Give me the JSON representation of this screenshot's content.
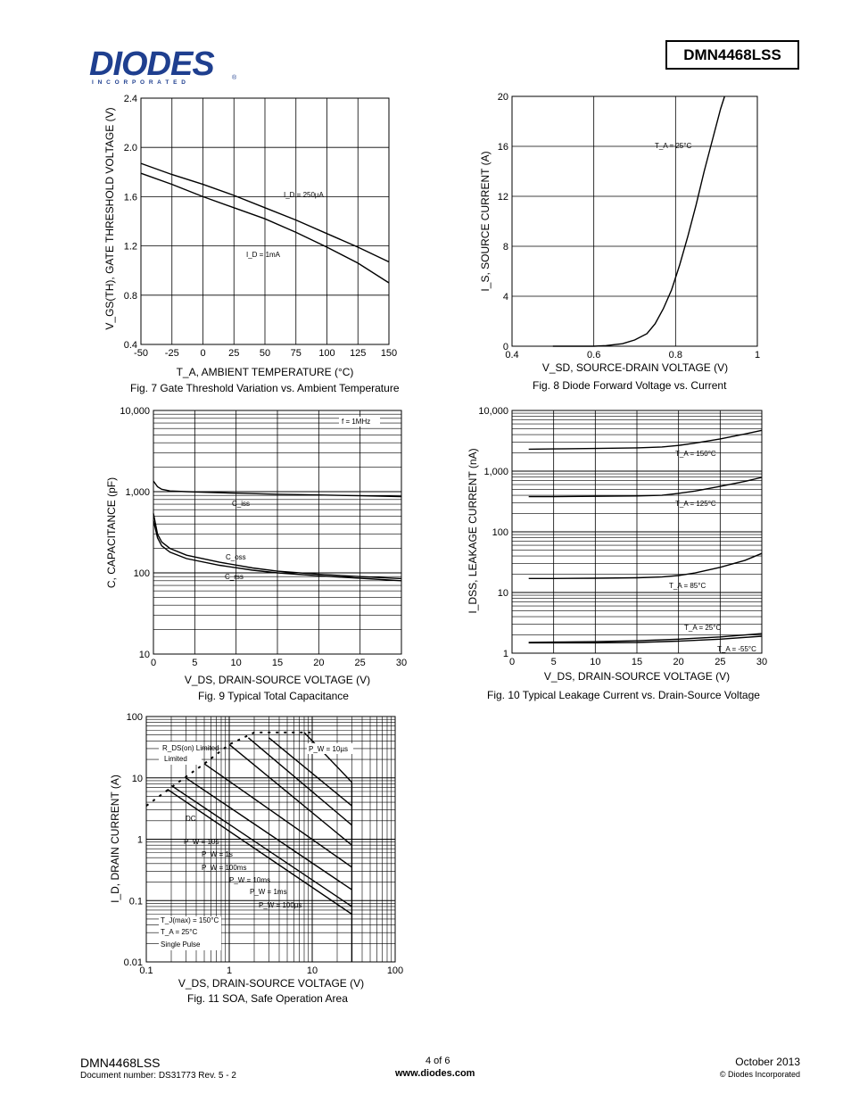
{
  "header": {
    "logo_text": "DIODES",
    "logo_sub": "I N C O R P O R A T E D",
    "logo_reg": "®",
    "part_number": "DMN4468LSS"
  },
  "footer": {
    "part": "DMN4468LSS",
    "doc": "Document number: DS31773 Rev. 5 - 2",
    "page": "4 of 6",
    "url": "www.diodes.com",
    "date": "October 2013",
    "copyright": "© Diodes Incorporated"
  },
  "chart_data": [
    {
      "id": "fig7",
      "type": "line",
      "caption": "Fig. 7 Gate Threshold Variation vs. Ambient Temperature",
      "xlabel": "T_A, AMBIENT TEMPERATURE (°C)",
      "ylabel": "V_GS(TH), GATE THRESHOLD VOLTAGE (V)",
      "xlim": [
        -50,
        150
      ],
      "ylim": [
        0.4,
        2.4
      ],
      "xticks": [
        -50,
        -25,
        0,
        25,
        50,
        75,
        100,
        125,
        150
      ],
      "yticks": [
        0.4,
        0.8,
        1.2,
        1.6,
        2.0,
        2.4
      ],
      "ytick_labels": [
        "0.4",
        "0.8",
        "1.2",
        "1.6",
        "2.0",
        "2.4"
      ],
      "series": [
        {
          "name": "I_D = 250µA",
          "x": [
            -50,
            -25,
            0,
            25,
            50,
            75,
            100,
            125,
            150
          ],
          "y": [
            1.87,
            1.78,
            1.7,
            1.61,
            1.51,
            1.41,
            1.3,
            1.19,
            1.07
          ]
        },
        {
          "name": "I_D = 1mA",
          "x": [
            -50,
            -25,
            0,
            25,
            50,
            75,
            100,
            125,
            150
          ],
          "y": [
            1.79,
            1.7,
            1.6,
            1.51,
            1.42,
            1.31,
            1.19,
            1.06,
            0.9
          ]
        }
      ],
      "annotations": [
        "I_D = 250µA",
        "I_D = 1mA"
      ]
    },
    {
      "id": "fig8",
      "type": "line",
      "caption": "Fig. 8 Diode Forward Voltage vs. Current",
      "xlabel": "V_SD, SOURCE-DRAIN VOLTAGE (V)",
      "ylabel": "I_S, SOURCE CURRENT (A)",
      "xlim": [
        0.4,
        1.0
      ],
      "ylim": [
        0,
        20
      ],
      "xticks": [
        0.4,
        0.6,
        0.8,
        1.0
      ],
      "xtick_labels": [
        "0.4",
        "0.6",
        "0.8",
        "1"
      ],
      "yticks": [
        0,
        4,
        8,
        12,
        16,
        20
      ],
      "series": [
        {
          "name": "T_A = 25°C",
          "x": [
            0.5,
            0.6,
            0.63,
            0.67,
            0.7,
            0.73,
            0.75,
            0.77,
            0.79,
            0.81,
            0.83,
            0.85,
            0.87,
            0.89,
            0.91,
            0.92
          ],
          "y": [
            0.0,
            0.0,
            0.05,
            0.2,
            0.5,
            1.0,
            1.8,
            3.0,
            4.5,
            6.5,
            8.8,
            11.3,
            14.0,
            16.5,
            19.0,
            20.0
          ]
        }
      ],
      "annotations": [
        "T_A = 25°C"
      ]
    },
    {
      "id": "fig9",
      "type": "line",
      "yscale": "log",
      "caption": "Fig. 9 Typical Total Capacitance",
      "xlabel": "V_DS, DRAIN-SOURCE VOLTAGE (V)",
      "ylabel": "C, CAPACITANCE (pF)",
      "xlim": [
        0,
        30
      ],
      "ylim": [
        10,
        10000
      ],
      "xticks": [
        0,
        5,
        10,
        15,
        20,
        25,
        30
      ],
      "yticks": [
        10,
        100,
        1000,
        10000
      ],
      "ytick_labels": [
        "10",
        "100",
        "1,000",
        "10,000"
      ],
      "legend": "f = 1MHz",
      "series": [
        {
          "name": "C_iss",
          "x": [
            0,
            0.5,
            1,
            2,
            4,
            8,
            15,
            20,
            25,
            30
          ],
          "y": [
            1350,
            1150,
            1070,
            1020,
            1000,
            970,
            930,
            910,
            890,
            870
          ]
        },
        {
          "name": "C_oss",
          "x": [
            0,
            0.5,
            1,
            2,
            4,
            8,
            12,
            15,
            20,
            25,
            30
          ],
          "y": [
            540,
            300,
            240,
            200,
            165,
            135,
            115,
            105,
            96,
            90,
            85
          ]
        },
        {
          "name": "C_rss",
          "x": [
            0,
            0.5,
            1,
            2,
            4,
            8,
            12,
            15,
            20,
            25,
            30
          ],
          "y": [
            440,
            270,
            215,
            180,
            150,
            124,
            108,
            100,
            92,
            86,
            80
          ]
        }
      ],
      "annotations": [
        "C_iss",
        "C_oss",
        "C_rss"
      ]
    },
    {
      "id": "fig10",
      "type": "line",
      "yscale": "log",
      "caption": "Fig. 10 Typical Leakage Current vs. Drain-Source Voltage",
      "xlabel": "V_DS, DRAIN-SOURCE VOLTAGE (V)",
      "ylabel": "I_DSS, LEAKAGE CURRENT (nA)",
      "xlim": [
        0,
        30
      ],
      "ylim": [
        1,
        10000
      ],
      "xticks": [
        0,
        5,
        10,
        15,
        20,
        25,
        30
      ],
      "yticks": [
        1,
        10,
        100,
        1000,
        10000
      ],
      "ytick_labels": [
        "1",
        "10",
        "100",
        "1,000",
        "10,000"
      ],
      "series": [
        {
          "name": "T_A = 150°C",
          "x": [
            2,
            5,
            10,
            15,
            18,
            20,
            22,
            25,
            28,
            30
          ],
          "y": [
            2300,
            2320,
            2360,
            2420,
            2500,
            2650,
            2900,
            3400,
            4100,
            4700
          ]
        },
        {
          "name": "T_A = 125°C",
          "x": [
            2,
            5,
            10,
            15,
            18,
            20,
            22,
            25,
            28,
            30
          ],
          "y": [
            380,
            380,
            385,
            390,
            400,
            430,
            470,
            560,
            680,
            790
          ]
        },
        {
          "name": "T_A = 85°C",
          "x": [
            2,
            5,
            10,
            15,
            18,
            20,
            22,
            25,
            28,
            30
          ],
          "y": [
            17,
            17,
            17.2,
            17.5,
            18,
            19,
            21,
            26,
            34,
            44
          ]
        },
        {
          "name": "T_A = 25°C",
          "x": [
            2,
            5,
            10,
            15,
            20,
            25,
            30
          ],
          "y": [
            1.5,
            1.52,
            1.55,
            1.6,
            1.7,
            1.85,
            2.1
          ]
        },
        {
          "name": "T_A = -55°C",
          "x": [
            2,
            5,
            10,
            15,
            20,
            25,
            30
          ],
          "y": [
            1.48,
            1.48,
            1.48,
            1.5,
            1.58,
            1.7,
            1.9
          ]
        }
      ],
      "annotations": [
        "T_A = 150°C",
        "T_A = 125°C",
        "T_A = 85°C",
        "T_A = 25°C",
        "T_A = -55°C"
      ]
    },
    {
      "id": "fig11",
      "type": "line",
      "xscale": "log",
      "yscale": "log",
      "caption": "Fig. 11 SOA, Safe Operation Area",
      "xlabel": "V_DS, DRAIN-SOURCE VOLTAGE (V)",
      "ylabel": "I_D, DRAIN CURRENT (A)",
      "xlim": [
        0.1,
        100
      ],
      "ylim": [
        0.01,
        100
      ],
      "xticks": [
        0.1,
        1,
        10,
        100
      ],
      "xtick_labels": [
        "0.1",
        "1",
        "10",
        "100"
      ],
      "yticks": [
        0.01,
        0.1,
        1,
        10,
        100
      ],
      "ytick_labels": [
        "0.01",
        "0.1",
        "1",
        "10",
        "100"
      ],
      "series": [
        {
          "name": "R_DS(on) Limited",
          "style": "dashed",
          "x": [
            0.1,
            0.2,
            0.5,
            1,
            2,
            3,
            6,
            10
          ],
          "y": [
            3.5,
            7,
            17,
            35,
            55,
            55,
            55,
            55
          ]
        },
        {
          "name": "P_W = 10µs",
          "x": [
            8,
            30,
            30
          ],
          "y": [
            55,
            8.5,
            0.01
          ]
        },
        {
          "name": "P_W = 100µs",
          "x": [
            3,
            30
          ],
          "y": [
            45,
            3.5
          ]
        },
        {
          "name": "P_W = 1ms",
          "x": [
            1.7,
            30
          ],
          "y": [
            45,
            1.7
          ]
        },
        {
          "name": "P_W = 10ms",
          "x": [
            1.0,
            30
          ],
          "y": [
            35,
            0.8
          ]
        },
        {
          "name": "P_W = 100ms",
          "x": [
            0.5,
            30
          ],
          "y": [
            17,
            0.35
          ]
        },
        {
          "name": "P_W = 1s",
          "x": [
            0.3,
            30
          ],
          "y": [
            10,
            0.15
          ]
        },
        {
          "name": "P_W = 10s",
          "x": [
            0.2,
            30
          ],
          "y": [
            7.5,
            0.08
          ]
        },
        {
          "name": "DC",
          "x": [
            0.18,
            30
          ],
          "y": [
            6.5,
            0.06
          ]
        }
      ],
      "annotations": [
        "R_DS(on) Limited",
        "P_W = 10µs",
        "DC",
        "P_W = 10s",
        "P_W = 1s",
        "P_W = 100ms",
        "P_W = 10ms",
        "P_W = 1ms",
        "P_W = 100µs",
        "T_J(max) = 150°C",
        "T_A = 25°C",
        "Single Pulse"
      ]
    }
  ]
}
